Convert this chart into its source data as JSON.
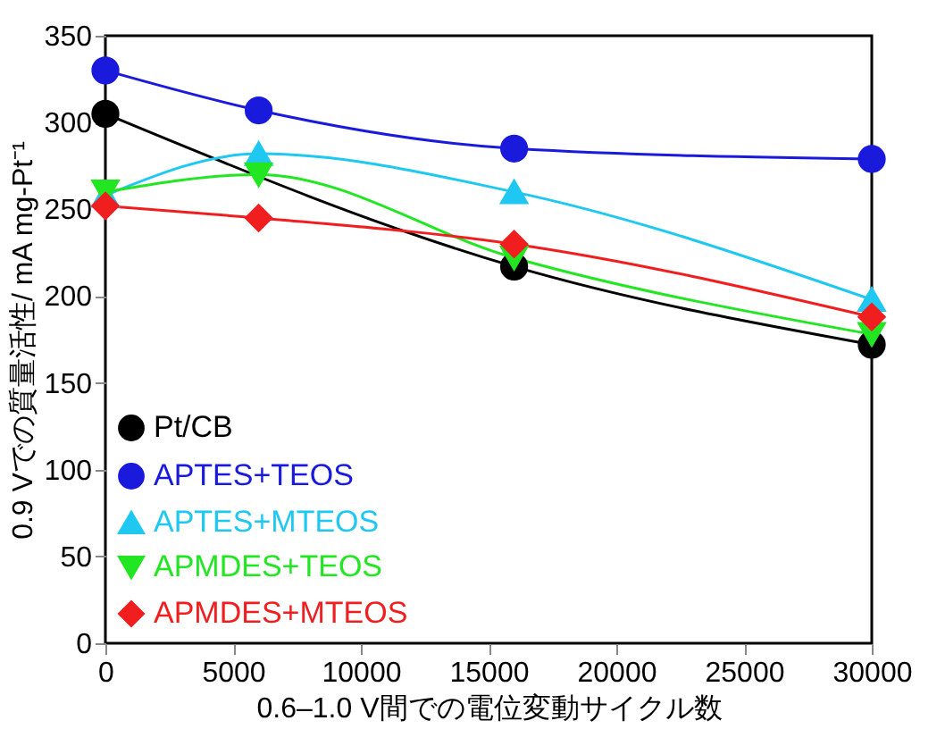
{
  "chart_data": {
    "type": "line",
    "xlabel": "0.6–1.0 V間での電位変動サイクル数",
    "ylabel": "0.9 Vでの質量活性/ mA mg-Pt⁻¹",
    "xlim": [
      0,
      30000
    ],
    "xticks": [
      0,
      5000,
      10000,
      15000,
      20000,
      25000,
      30000
    ],
    "ylim": [
      0,
      350
    ],
    "yticks": [
      0,
      50,
      100,
      150,
      200,
      250,
      300,
      350
    ],
    "grid": false,
    "legend": "bottom left",
    "line_style": "solid",
    "series": [
      {
        "name": "Pt/CB",
        "color": "#000000",
        "marker": "circle",
        "x": [
          0,
          16000,
          30000
        ],
        "values": [
          305,
          217,
          172
        ]
      },
      {
        "name": "APTES+TEOS",
        "color": "#1a1adc",
        "marker": "circle",
        "x": [
          0,
          6000,
          16000,
          30000
        ],
        "values": [
          330,
          307,
          285,
          279
        ]
      },
      {
        "name": "APTES+MTEOS",
        "color": "#1ec8f0",
        "marker": "triangle",
        "x": [
          0,
          6000,
          16000,
          30000
        ],
        "values": [
          258,
          282,
          260,
          198
        ]
      },
      {
        "name": "APMDES+TEOS",
        "color": "#22e622",
        "marker": "triangle-down",
        "x": [
          0,
          6000,
          16000,
          30000
        ],
        "values": [
          260,
          270,
          222,
          178
        ]
      },
      {
        "name": "APMDES+MTEOS",
        "color": "#f01e1e",
        "marker": "diamond",
        "x": [
          0,
          6000,
          16000,
          30000
        ],
        "values": [
          252,
          245,
          230,
          188
        ]
      }
    ]
  }
}
